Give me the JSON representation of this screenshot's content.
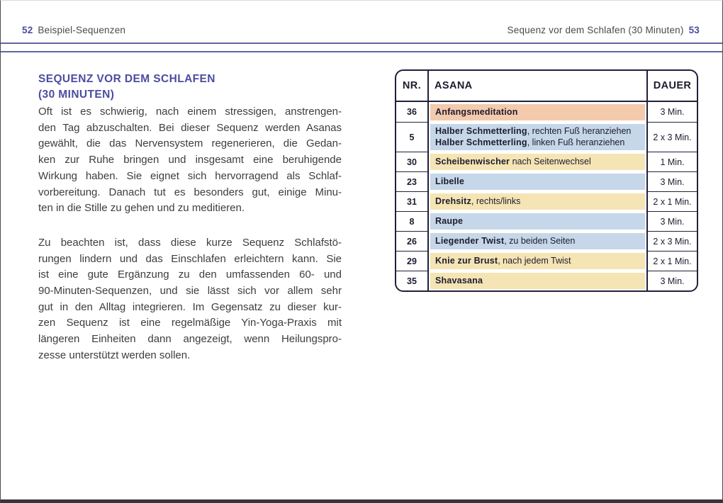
{
  "running_head": {
    "left_page_number": "52",
    "left_title": "Beispiel-Sequenzen",
    "right_title": "Sequenz vor dem Schlafen (30 Minuten)",
    "right_page_number": "53"
  },
  "colors": {
    "accent_purple": "#4b4d9e",
    "rule_purple": "#63659f",
    "body_text": "#3d3d3d",
    "table_border": "#20203a"
  },
  "article": {
    "heading_line1": "SEQUENZ VOR DEM SCHLAFEN",
    "heading_line2": "(30 MINUTEN)",
    "paragraphs": [
      {
        "lines": [
          "Oft ist es schwierig, nach einem stressigen, anstrengen-",
          "den Tag abzuschalten. Bei dieser Sequenz werden Asanas",
          "gewählt, die das Nervensystem regenerieren, die Gedan-",
          "ken zur Ruhe bringen und insgesamt eine beruhigende",
          "Wirkung haben. Sie eignet sich hervorragend als Schlaf-",
          "vorbereitung. Danach tut es besonders gut, einige Minu-",
          "ten in die Stille zu gehen und zu meditieren."
        ]
      },
      {
        "lines": [
          "Zu beachten ist, dass diese kurze Sequenz Schlafstö-",
          "rungen lindern und das Einschlafen erleichtern kann. Sie",
          "ist eine gute Ergänzung zu den umfassenden 60- und",
          "90-Minuten-Sequenzen, und sie lässt sich vor allem sehr",
          "gut in den Alltag integrieren. Im Gegensatz zu dieser kur-",
          "zen Sequenz ist eine regelmäßige Yin-Yoga-Praxis mit",
          "längeren Einheiten dann angezeigt, wenn Heilungspro-",
          "zesse unterstützt werden sollen."
        ]
      }
    ]
  },
  "table": {
    "columns": [
      "NR.",
      "ASANA",
      "DAUER"
    ],
    "colors": {
      "salmon": "#f4caad",
      "blue": "#c5d7e8",
      "yellow": "#f5e4b4"
    },
    "rows": [
      {
        "nr": "36",
        "color": "salmon",
        "dauer": "3 Min.",
        "lines": [
          {
            "bold": "Anfangsmeditation",
            "rest": ""
          }
        ]
      },
      {
        "nr": "5",
        "color": "blue",
        "dauer": "2 x 3 Min.",
        "lines": [
          {
            "bold": "Halber Schmetterling",
            "rest": ", rechten Fuß heranziehen"
          },
          {
            "bold": "Halber Schmetterling",
            "rest": ", linken Fuß heranziehen"
          }
        ]
      },
      {
        "nr": "30",
        "color": "yellow",
        "dauer": "1 Min.",
        "lines": [
          {
            "bold": "Scheibenwischer",
            "rest": " nach Seitenwechsel"
          }
        ]
      },
      {
        "nr": "23",
        "color": "blue",
        "dauer": "3 Min.",
        "lines": [
          {
            "bold": "Libelle",
            "rest": ""
          }
        ]
      },
      {
        "nr": "31",
        "color": "yellow",
        "dauer": "2 x 1 Min.",
        "lines": [
          {
            "bold": "Drehsitz",
            "rest": ", rechts/links"
          }
        ]
      },
      {
        "nr": "8",
        "color": "blue",
        "dauer": "3 Min.",
        "lines": [
          {
            "bold": "Raupe",
            "rest": ""
          }
        ]
      },
      {
        "nr": "26",
        "color": "blue",
        "dauer": "2 x 3 Min.",
        "lines": [
          {
            "bold": "Liegender Twist",
            "rest": ", zu beiden Seiten"
          }
        ]
      },
      {
        "nr": "29",
        "color": "yellow",
        "dauer": "2 x 1 Min.",
        "lines": [
          {
            "bold": "Knie zur Brust",
            "rest": ", nach jedem Twist"
          }
        ]
      },
      {
        "nr": "35",
        "color": "yellow",
        "dauer": "3 Min.",
        "lines": [
          {
            "bold": "Shavasana",
            "rest": ""
          }
        ]
      }
    ]
  }
}
